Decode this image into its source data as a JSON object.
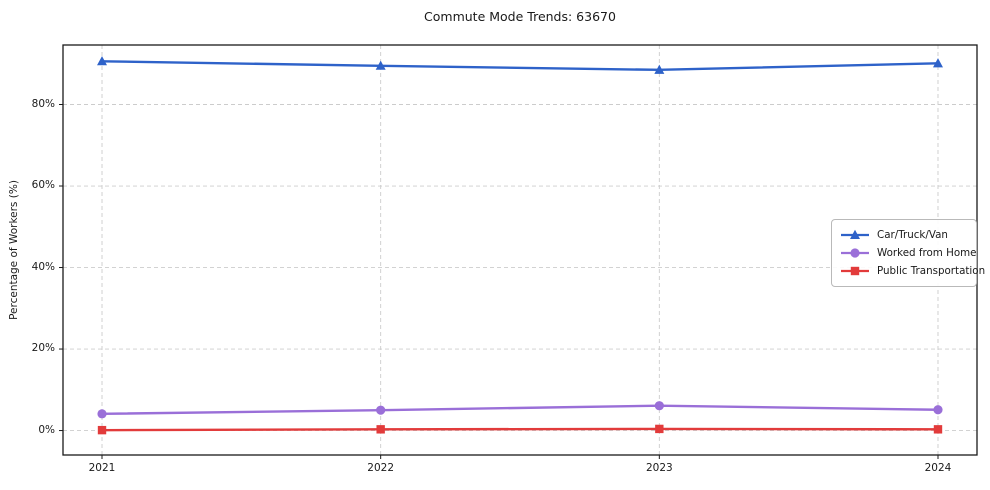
{
  "chart_data": {
    "type": "line",
    "title": "Commute Mode Trends: 63670",
    "xlabel": "",
    "ylabel": "Percentage of Workers (%)",
    "x": [
      2021,
      2022,
      2023,
      2024
    ],
    "x_tick_labels": [
      "2021",
      "2022",
      "2023",
      "2024"
    ],
    "y_ticks": [
      0,
      20,
      40,
      60,
      80
    ],
    "y_tick_labels": [
      "0%",
      "20%",
      "40%",
      "60%",
      "80%"
    ],
    "xlim": [
      2020.86,
      2024.14
    ],
    "ylim": [
      -6,
      94.6
    ],
    "grid": true,
    "legend_position": "center right",
    "series": [
      {
        "name": "Car/Truck/Van",
        "marker": "triangle",
        "color": "#2e62c9",
        "values": [
          90.6,
          89.5,
          88.5,
          90.1
        ]
      },
      {
        "name": "Worked from Home",
        "marker": "circle",
        "color": "#9a6fd8",
        "values": [
          4.1,
          5.0,
          6.1,
          5.1
        ]
      },
      {
        "name": "Public Transportation",
        "marker": "square",
        "color": "#e23b3b",
        "values": [
          0.1,
          0.3,
          0.4,
          0.3
        ]
      }
    ],
    "colors": {
      "grid": "#cccccc",
      "spine": "#1a1a1a",
      "text": "#1a1a1a",
      "background": "#ffffff"
    }
  }
}
